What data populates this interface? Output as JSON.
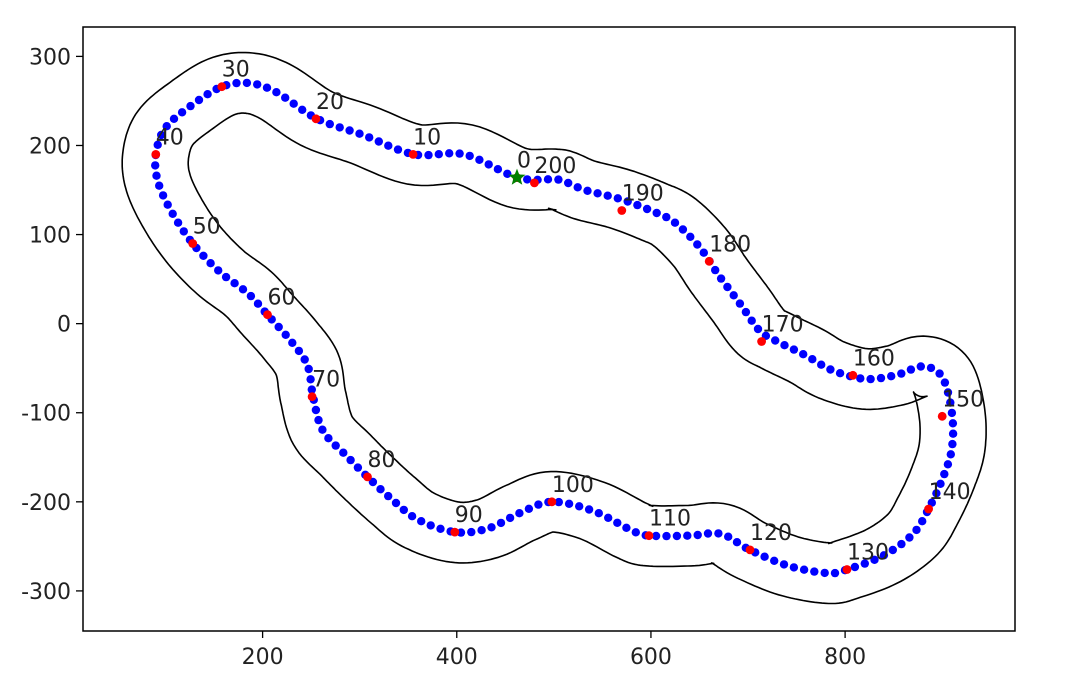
{
  "chart_data": {
    "type": "scatter",
    "title": "",
    "xlabel": "",
    "ylabel": "",
    "xlim": [
      15,
      975
    ],
    "ylim": [
      -345,
      333
    ],
    "x_ticks": [
      200,
      400,
      600,
      800
    ],
    "y_ticks": [
      300,
      200,
      100,
      0,
      -100,
      -200,
      -300
    ],
    "x_tick_labels": [
      "200",
      "400",
      "600",
      "800"
    ],
    "y_tick_labels": [
      "300",
      "200",
      "100",
      "0",
      "-100",
      "-200",
      "-300"
    ],
    "grid": false,
    "legend": "none",
    "colors": {
      "waypoint": "#0000ff",
      "labeled_waypoint": "#ff0000",
      "start_marker": "#008000",
      "boundary": "#000000"
    },
    "centerline_waypoints": [
      [
        462,
        164
      ],
      [
        408,
        190
      ],
      [
        356,
        190
      ],
      [
        303,
        212
      ],
      [
        256,
        230
      ],
      [
        214,
        260
      ],
      [
        186,
        270
      ],
      [
        158,
        266
      ],
      [
        128,
        246
      ],
      [
        100,
        220
      ],
      [
        90,
        190
      ],
      [
        92,
        160
      ],
      [
        106,
        126
      ],
      [
        128,
        90
      ],
      [
        156,
        58
      ],
      [
        185,
        34
      ],
      [
        205,
        10
      ],
      [
        228,
        -18
      ],
      [
        246,
        -46
      ],
      [
        252,
        -82
      ],
      [
        262,
        -120
      ],
      [
        286,
        -148
      ],
      [
        308,
        -172
      ],
      [
        334,
        -198
      ],
      [
        360,
        -220
      ],
      [
        398,
        -234
      ],
      [
        432,
        -230
      ],
      [
        466,
        -212
      ],
      [
        498,
        -200
      ],
      [
        540,
        -210
      ],
      [
        580,
        -232
      ],
      [
        598,
        -238
      ],
      [
        640,
        -238
      ],
      [
        672,
        -236
      ],
      [
        702,
        -254
      ],
      [
        742,
        -272
      ],
      [
        782,
        -280
      ],
      [
        802,
        -276
      ],
      [
        840,
        -260
      ],
      [
        870,
        -236
      ],
      [
        886,
        -208
      ],
      [
        900,
        -175
      ],
      [
        910,
        -140
      ],
      [
        910,
        -100
      ],
      [
        900,
        -60
      ],
      [
        880,
        -48
      ],
      [
        852,
        -58
      ],
      [
        820,
        -62
      ],
      [
        786,
        -52
      ],
      [
        760,
        -36
      ],
      [
        730,
        -20
      ],
      [
        712,
        -8
      ],
      [
        692,
        22
      ],
      [
        670,
        54
      ],
      [
        650,
        86
      ],
      [
        624,
        114
      ],
      [
        602,
        126
      ],
      [
        568,
        140
      ],
      [
        532,
        150
      ],
      [
        510,
        160
      ],
      [
        500,
        162
      ]
    ],
    "labeled_waypoints": [
      {
        "label": "0",
        "x": 462,
        "y": 164
      },
      {
        "label": "10",
        "x": 355,
        "y": 190
      },
      {
        "label": "20",
        "x": 255,
        "y": 230
      },
      {
        "label": "30",
        "x": 158,
        "y": 266
      },
      {
        "label": "40",
        "x": 90,
        "y": 190
      },
      {
        "label": "50",
        "x": 128,
        "y": 90
      },
      {
        "label": "60",
        "x": 205,
        "y": 10
      },
      {
        "label": "70",
        "x": 251,
        "y": -82
      },
      {
        "label": "80",
        "x": 308,
        "y": -172
      },
      {
        "label": "90",
        "x": 398,
        "y": -234
      },
      {
        "label": "100",
        "x": 498,
        "y": -200
      },
      {
        "label": "110",
        "x": 598,
        "y": -238
      },
      {
        "label": "120",
        "x": 702,
        "y": -254
      },
      {
        "label": "130",
        "x": 802,
        "y": -276
      },
      {
        "label": "140",
        "x": 886,
        "y": -208
      },
      {
        "label": "150",
        "x": 900,
        "y": -104
      },
      {
        "label": "160",
        "x": 808,
        "y": -58
      },
      {
        "label": "170",
        "x": 714,
        "y": -20
      },
      {
        "label": "180",
        "x": 660,
        "y": 70
      },
      {
        "label": "190",
        "x": 570,
        "y": 127
      },
      {
        "label": "200",
        "x": 480,
        "y": 158
      }
    ],
    "start_marker": {
      "x": 462,
      "y": 164
    },
    "track_half_width": 34
  }
}
